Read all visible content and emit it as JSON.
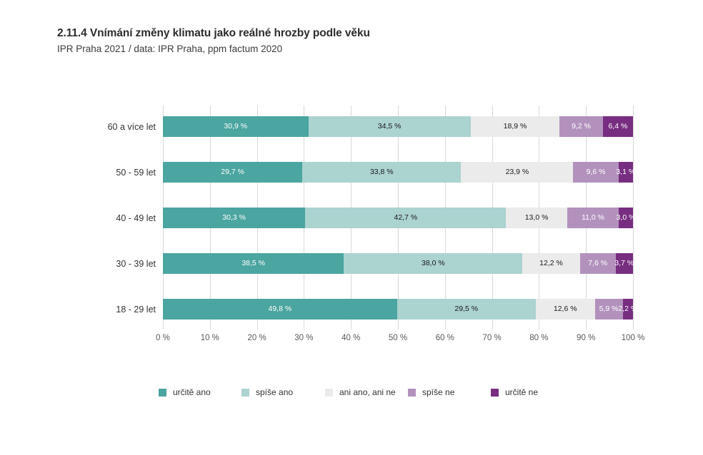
{
  "header": {
    "title": "2.11.4 Vnímání změny klimatu jako reálné hrozby podle věku",
    "subtitle": "IPR Praha 2021 / data: IPR Praha, ppm factum 2020"
  },
  "chart_data": {
    "type": "bar",
    "variant": "horizontal-stacked",
    "title": "2.11.4 Vnímání změny klimatu jako reálné hrozby podle věku",
    "subtitle": "IPR Praha 2021 / data: IPR Praha, ppm factum 2020",
    "xlabel": "",
    "ylabel": "",
    "xlim": [
      0,
      100
    ],
    "grid": true,
    "legend_position": "bottom",
    "x_ticks": [
      "0 %",
      "10 %",
      "20 %",
      "30 %",
      "40 %",
      "50 %",
      "60 %",
      "70 %",
      "80 %",
      "90 %",
      "100 %"
    ],
    "categories": [
      "60 a více let",
      "50 - 59 let",
      "40 - 49 let",
      "30 - 39 let",
      "18 - 29 let"
    ],
    "series": [
      {
        "name": "určitě ano",
        "color": "#4BA5A0",
        "label_color": "#ffffff",
        "values": [
          30.9,
          29.7,
          30.3,
          38.5,
          49.8
        ],
        "labels": [
          "30,9 %",
          "29,7 %",
          "30,3 %",
          "38,5 %",
          "49,8 %"
        ]
      },
      {
        "name": "spíše ano",
        "color": "#ABD3D0",
        "label_color": "#1a1a1a",
        "values": [
          34.5,
          33.8,
          42.7,
          38.0,
          29.5
        ],
        "labels": [
          "34,5 %",
          "33,8 %",
          "42,7 %",
          "38,0 %",
          "29,5 %"
        ]
      },
      {
        "name": "ani ano, ani ne",
        "color": "#EBEBEB",
        "label_color": "#1a1a1a",
        "values": [
          18.9,
          23.9,
          13.0,
          12.2,
          12.6
        ],
        "labels": [
          "18,9 %",
          "23,9 %",
          "13,0 %",
          "12,2 %",
          "12,6 %"
        ]
      },
      {
        "name": "spíše ne",
        "color": "#B292BD",
        "label_color": "#ffffff",
        "values": [
          9.2,
          9.6,
          11.0,
          7.6,
          5.9
        ],
        "labels": [
          "9,2 %",
          "9,6 %",
          "11,0 %",
          "7,6 %",
          "5,9 %"
        ]
      },
      {
        "name": "určitě ne",
        "color": "#772D80",
        "label_color": "#ffffff",
        "values": [
          6.4,
          3.1,
          3.0,
          3.7,
          2.2
        ],
        "labels": [
          "6,4 %",
          "3,1 %",
          "3,0 %",
          "3,7 %",
          "2,2 %"
        ]
      }
    ],
    "colors": {
      "gridline": "#d9d9d9",
      "tick_text": "#595959",
      "category_text": "#333333"
    }
  }
}
